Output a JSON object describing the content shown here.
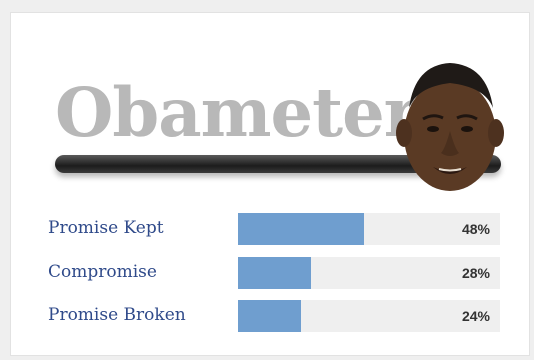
{
  "header": {
    "title": "Obameter",
    "avatar_icon": "portrait-face-icon"
  },
  "ratings": [
    {
      "label": "Promise Kept",
      "percent_text": "48%",
      "value": 48
    },
    {
      "label": "Compromise",
      "percent_text": "28%",
      "value": 28
    },
    {
      "label": "Promise Broken",
      "percent_text": "24%",
      "value": 24
    }
  ],
  "colors": {
    "bar_fill": "#6f9ecf",
    "bar_track": "#efefef",
    "label_text": "#2f4a8a",
    "title_text": "#b8b8b8"
  }
}
